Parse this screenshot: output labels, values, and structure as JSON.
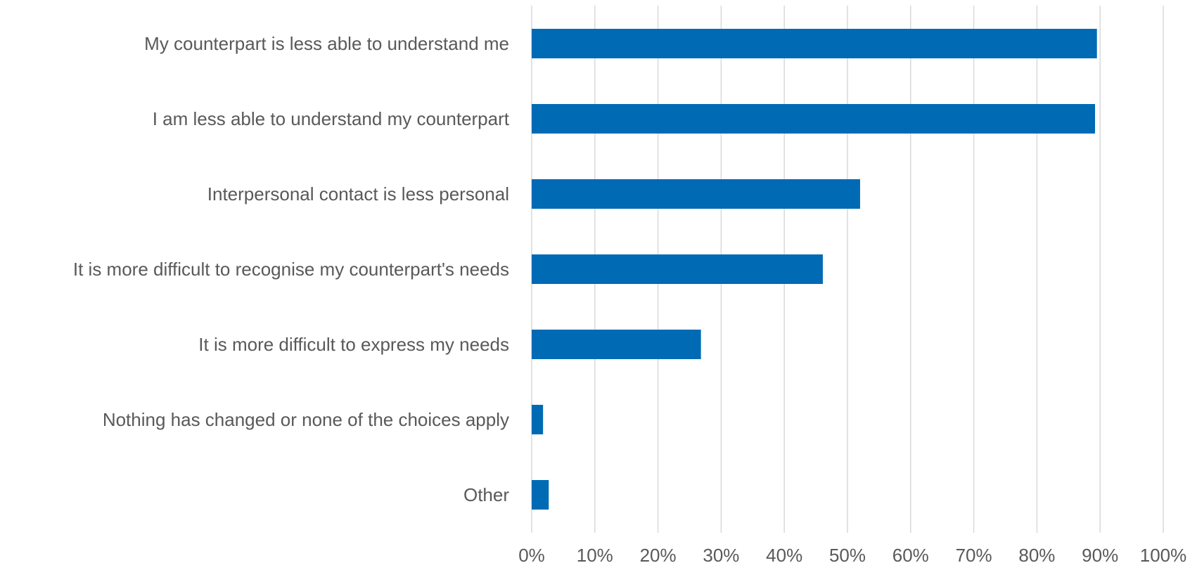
{
  "chart_data": {
    "type": "bar",
    "orientation": "horizontal",
    "categories": [
      "My counterpart is less able to understand me",
      "I am less able to understand my counterpart",
      "Interpersonal contact is less personal",
      "It is more difficult to recognise my counterpart's needs",
      "It is more difficult to express my needs",
      "Nothing has changed or none of the choices apply",
      "Other"
    ],
    "values": [
      89.5,
      89.2,
      52.0,
      46.1,
      26.8,
      1.8,
      2.7
    ],
    "xlim": [
      0,
      100
    ],
    "x_ticks": [
      "0%",
      "10%",
      "20%",
      "30%",
      "40%",
      "50%",
      "60%",
      "70%",
      "80%",
      "90%",
      "100%"
    ],
    "bar_color": "#006AB4",
    "grid_color": "#D9D9D9",
    "grid": true,
    "legend": false
  }
}
